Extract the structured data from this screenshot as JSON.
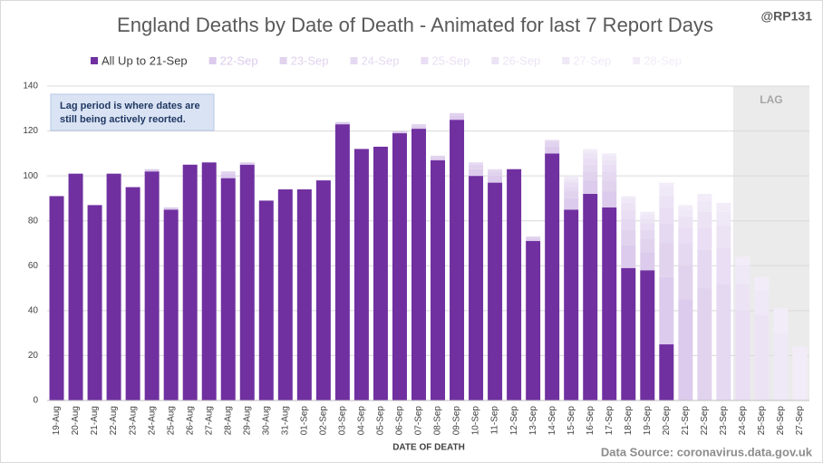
{
  "chart_data": {
    "type": "stacked_bar",
    "title": "England Deaths by Date of Death - Animated for last 7 Report Days",
    "handle": "@RP131",
    "annotation": [
      "Lag period is where dates are",
      "still being actively reorted."
    ],
    "lag_label": "LAG",
    "x_label": "DATE OF DEATH",
    "source": "Data Source: coronavirus.data.gov.uk",
    "categories": [
      "19-Aug",
      "20-Aug",
      "21-Aug",
      "22-Aug",
      "23-Aug",
      "24-Aug",
      "25-Aug",
      "26-Aug",
      "27-Aug",
      "28-Aug",
      "29-Aug",
      "30-Aug",
      "31-Aug",
      "01-Sep",
      "02-Sep",
      "03-Sep",
      "04-Sep",
      "05-Sep",
      "06-Sep",
      "07-Sep",
      "08-Sep",
      "09-Sep",
      "10-Sep",
      "11-Sep",
      "12-Sep",
      "13-Sep",
      "14-Sep",
      "15-Sep",
      "16-Sep",
      "17-Sep",
      "18-Sep",
      "19-Sep",
      "20-Sep",
      "21-Sep",
      "22-Sep",
      "23-Sep",
      "24-Sep",
      "25-Sep",
      "26-Sep",
      "27-Sep"
    ],
    "series": [
      {
        "name": "All Up to 21-Sep",
        "color": "#7030a0",
        "values": [
          91,
          101,
          87,
          101,
          95,
          102,
          85,
          105,
          106,
          99,
          105,
          89,
          94,
          94,
          98,
          123,
          112,
          113,
          119,
          121,
          107,
          125,
          100,
          97,
          103,
          71,
          110,
          85,
          92,
          86,
          59,
          58,
          25,
          0,
          0,
          0,
          0,
          0,
          0,
          0
        ]
      },
      {
        "name": "22-Sep",
        "color": "#dccbec",
        "values": [
          0,
          0,
          0,
          0,
          0,
          1,
          1,
          0,
          0,
          2,
          1,
          0,
          0,
          0,
          0,
          1,
          0,
          0,
          1,
          1,
          1,
          2,
          3,
          3,
          0,
          1,
          3,
          5,
          6,
          7,
          10,
          8,
          30,
          45,
          0,
          0,
          0,
          0,
          0,
          0
        ]
      },
      {
        "name": "23-Sep",
        "color": "#e1d3ee",
        "values": [
          0,
          0,
          0,
          0,
          0,
          0,
          0,
          0,
          0,
          1,
          0,
          0,
          0,
          0,
          0,
          0,
          0,
          0,
          0,
          1,
          1,
          1,
          2,
          2,
          0,
          1,
          2,
          3,
          4,
          5,
          7,
          6,
          15,
          15,
          50,
          0,
          0,
          0,
          0,
          0
        ]
      },
      {
        "name": "24-Sep",
        "color": "#e5d9f1",
        "values": [
          0,
          0,
          0,
          0,
          0,
          0,
          0,
          0,
          0,
          0,
          0,
          0,
          0,
          0,
          0,
          0,
          0,
          0,
          0,
          0,
          0,
          0,
          1,
          1,
          0,
          0,
          1,
          2,
          3,
          4,
          5,
          4,
          9,
          10,
          17,
          52,
          0,
          0,
          0,
          0
        ]
      },
      {
        "name": "25-Sep",
        "color": "#e9def3",
        "values": [
          0,
          0,
          0,
          0,
          0,
          0,
          0,
          0,
          0,
          0,
          0,
          0,
          0,
          0,
          0,
          0,
          0,
          0,
          0,
          0,
          0,
          0,
          0,
          0,
          0,
          0,
          0,
          2,
          3,
          3,
          4,
          3,
          7,
          7,
          10,
          16,
          40,
          0,
          0,
          0
        ]
      },
      {
        "name": "26-Sep",
        "color": "#ece3f5",
        "values": [
          0,
          0,
          0,
          0,
          0,
          0,
          0,
          0,
          0,
          0,
          0,
          0,
          0,
          0,
          0,
          0,
          0,
          0,
          0,
          0,
          0,
          0,
          0,
          0,
          0,
          0,
          0,
          1,
          2,
          2,
          3,
          2,
          5,
          5,
          7,
          10,
          12,
          38,
          0,
          0
        ]
      },
      {
        "name": "27-Sep",
        "color": "#efe8f7",
        "values": [
          0,
          0,
          0,
          0,
          0,
          0,
          0,
          0,
          0,
          0,
          0,
          0,
          0,
          0,
          0,
          0,
          0,
          0,
          0,
          0,
          0,
          0,
          0,
          0,
          0,
          0,
          0,
          1,
          1,
          2,
          2,
          2,
          4,
          3,
          5,
          6,
          8,
          11,
          30,
          0
        ]
      },
      {
        "name": "28-Sep",
        "color": "#f2ecf8",
        "values": [
          0,
          0,
          0,
          0,
          0,
          0,
          0,
          0,
          0,
          0,
          0,
          0,
          0,
          0,
          0,
          0,
          0,
          0,
          0,
          0,
          0,
          0,
          0,
          0,
          0,
          0,
          0,
          1,
          1,
          1,
          1,
          1,
          2,
          2,
          3,
          4,
          4,
          6,
          11,
          24
        ]
      }
    ],
    "ylim": [
      0,
      140
    ],
    "yticks": [
      0,
      20,
      40,
      60,
      80,
      100,
      120,
      140
    ],
    "grid": true
  }
}
